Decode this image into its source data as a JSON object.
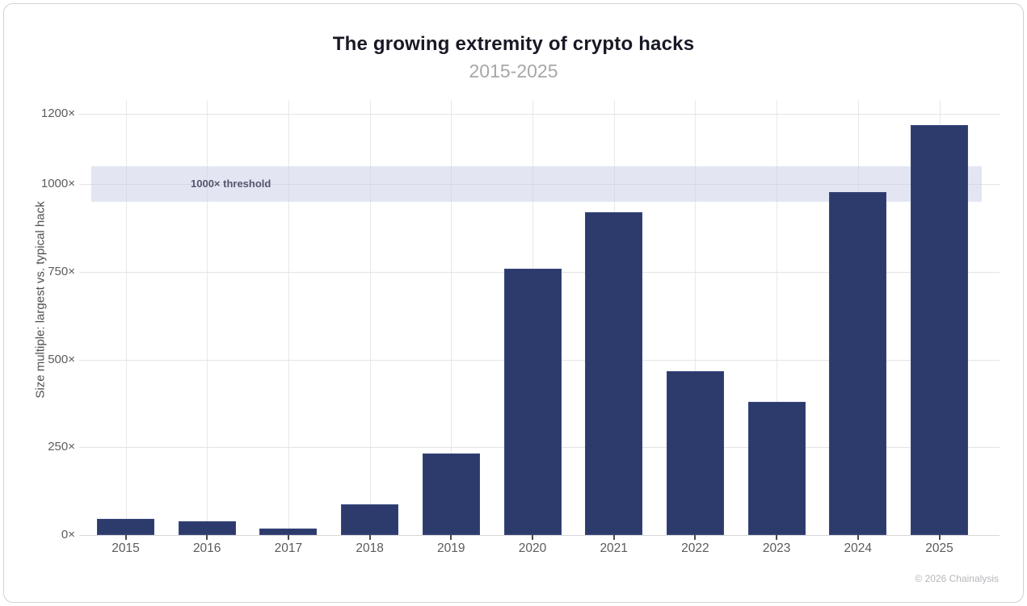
{
  "header": {
    "title": "The growing extremity of crypto hacks",
    "subtitle": "2015-2025"
  },
  "footer": {
    "copyright": "© 2026 Chainalysis"
  },
  "colors": {
    "bar": "#2d3a6c",
    "band": "#e1e6f2",
    "grid": "#e3e3e5",
    "title_text": "#181826",
    "subtitle_text": "#a7a7a9",
    "tick_text": "#5b5b5e"
  },
  "chart_data": {
    "type": "bar",
    "title": "The growing extremity of crypto hacks",
    "subtitle": "2015-2025",
    "categories": [
      "2015",
      "2016",
      "2017",
      "2018",
      "2019",
      "2020",
      "2021",
      "2022",
      "2023",
      "2024",
      "2025"
    ],
    "values": [
      45,
      40,
      18,
      87,
      233,
      758,
      920,
      468,
      380,
      978,
      1168
    ],
    "xlabel": "",
    "ylabel": "Size multiple: largest vs. typical hack",
    "ylim": [
      0,
      1240
    ],
    "yticks": [
      0,
      250,
      500,
      750,
      1000,
      1200
    ],
    "ytick_suffix": "×",
    "grid": true,
    "legend": "none",
    "bar_color": "#2d3a6c",
    "threshold_band": {
      "label": "1000× threshold",
      "from": 950,
      "to": 1050,
      "color": "#cdd4e9"
    },
    "source": "© 2026 Chainalysis"
  }
}
